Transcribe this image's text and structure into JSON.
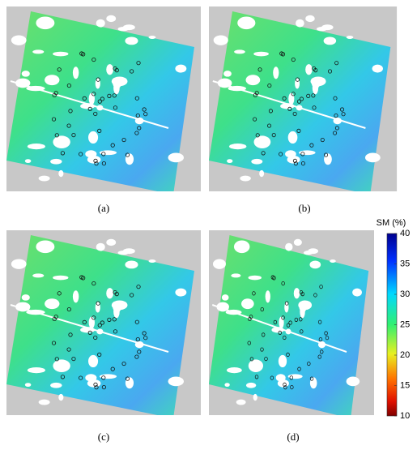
{
  "panels": [
    {
      "label": "(a)"
    },
    {
      "label": "(b)"
    },
    {
      "label": "(c)"
    },
    {
      "label": "(d)"
    }
  ],
  "colorbar": {
    "title": "SM (%)",
    "range": [
      10,
      40
    ],
    "ticks": [
      10,
      15,
      20,
      25,
      30,
      35,
      40
    ]
  }
}
